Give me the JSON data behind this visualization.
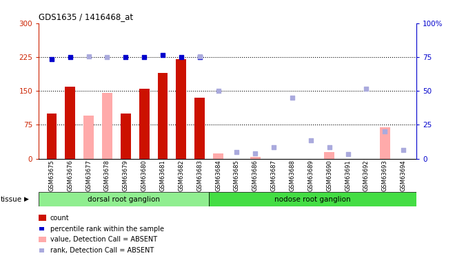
{
  "title": "GDS1635 / 1416468_at",
  "samples": [
    "GSM63675",
    "GSM63676",
    "GSM63677",
    "GSM63678",
    "GSM63679",
    "GSM63680",
    "GSM63681",
    "GSM63682",
    "GSM63683",
    "GSM63684",
    "GSM63685",
    "GSM63686",
    "GSM63687",
    "GSM63688",
    "GSM63689",
    "GSM63690",
    "GSM63691",
    "GSM63692",
    "GSM63693",
    "GSM63694"
  ],
  "count_values": [
    100,
    160,
    null,
    null,
    100,
    155,
    190,
    220,
    135,
    null,
    null,
    null,
    null,
    null,
    null,
    null,
    null,
    null,
    null,
    null
  ],
  "count_absent": [
    null,
    null,
    95,
    145,
    null,
    null,
    null,
    null,
    null,
    12,
    null,
    4,
    null,
    null,
    null,
    15,
    null,
    null,
    70,
    null
  ],
  "rank_present": [
    220,
    225,
    null,
    null,
    225,
    225,
    230,
    225,
    225,
    null,
    null,
    null,
    null,
    null,
    null,
    null,
    null,
    null,
    null,
    null
  ],
  "rank_absent": [
    null,
    null,
    226,
    225,
    null,
    null,
    null,
    null,
    226,
    150,
    14,
    12,
    25,
    135,
    40,
    25,
    10,
    155,
    60,
    20
  ],
  "groups": [
    {
      "label": "dorsal root ganglion",
      "start": 0,
      "end": 9,
      "color": "#90ee90"
    },
    {
      "label": "nodose root ganglion",
      "start": 9,
      "end": 20,
      "color": "#44dd44"
    }
  ],
  "ylim_left": [
    0,
    300
  ],
  "ylim_right": [
    0,
    100
  ],
  "yticks_left": [
    0,
    75,
    150,
    225,
    300
  ],
  "yticks_right": [
    0,
    25,
    50,
    75,
    100
  ],
  "hlines": [
    75,
    150,
    225
  ],
  "bar_color_present": "#cc1100",
  "bar_color_absent": "#ffaaaa",
  "dot_color_present": "#0000cc",
  "dot_color_absent": "#aaaadd",
  "tissue_label": "tissue",
  "legend": [
    {
      "label": "count",
      "color": "#cc1100",
      "type": "bar"
    },
    {
      "label": "percentile rank within the sample",
      "color": "#0000cc",
      "type": "dot"
    },
    {
      "label": "value, Detection Call = ABSENT",
      "color": "#ffaaaa",
      "type": "bar"
    },
    {
      "label": "rank, Detection Call = ABSENT",
      "color": "#aaaadd",
      "type": "dot"
    }
  ]
}
